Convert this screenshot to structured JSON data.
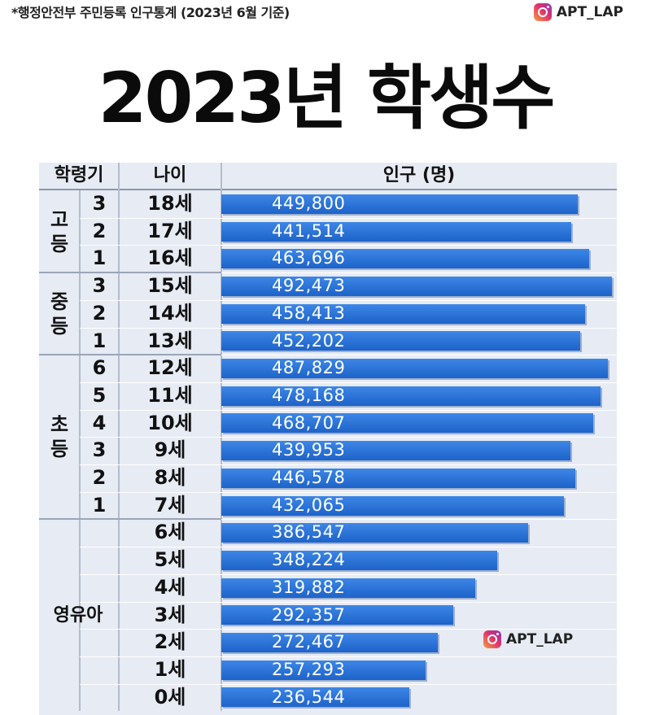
{
  "source_note": "*행정안전부 주민등록 인구통계 (2023년 6월 기준)",
  "brand": "APT_LAP",
  "watermark": "APT_LAP",
  "chart_data": {
    "type": "bar",
    "orientation": "horizontal",
    "title": "2023년 학생수",
    "headers": {
      "stage": "학령기",
      "age": "나이",
      "population": "인구 (명)"
    },
    "groups": [
      {
        "label": "고등",
        "rows": [
          0,
          1,
          2
        ]
      },
      {
        "label": "중등",
        "rows": [
          3,
          4,
          5
        ]
      },
      {
        "label": "초등",
        "rows": [
          6,
          7,
          8,
          9,
          10,
          11
        ]
      },
      {
        "label": "영유아",
        "rows": [
          12,
          13,
          14,
          15,
          16,
          17,
          18
        ]
      }
    ],
    "grades": [
      "3",
      "2",
      "1",
      "3",
      "2",
      "1",
      "6",
      "5",
      "4",
      "3",
      "2",
      "1",
      "",
      "",
      "",
      "",
      "",
      "",
      ""
    ],
    "categories": [
      "18세",
      "17세",
      "16세",
      "15세",
      "14세",
      "13세",
      "12세",
      "11세",
      "10세",
      "9세",
      "8세",
      "7세",
      "6세",
      "5세",
      "4세",
      "3세",
      "2세",
      "1세",
      "0세"
    ],
    "values": [
      449800,
      441514,
      463696,
      492473,
      458413,
      452202,
      487829,
      478168,
      468707,
      439953,
      446578,
      432065,
      386547,
      348224,
      319882,
      292357,
      272467,
      257293,
      236544
    ],
    "value_labels": [
      "449,800",
      "441,514",
      "463,696",
      "492,473",
      "458,413",
      "452,202",
      "487,829",
      "478,168",
      "468,707",
      "439,953",
      "446,578",
      "432,065",
      "386,547",
      "348,224",
      "319,882",
      "292,357",
      "272,467",
      "257,293",
      "236,544"
    ],
    "bar_color": "#2a72d8",
    "xlim": [
      0,
      492473
    ]
  }
}
